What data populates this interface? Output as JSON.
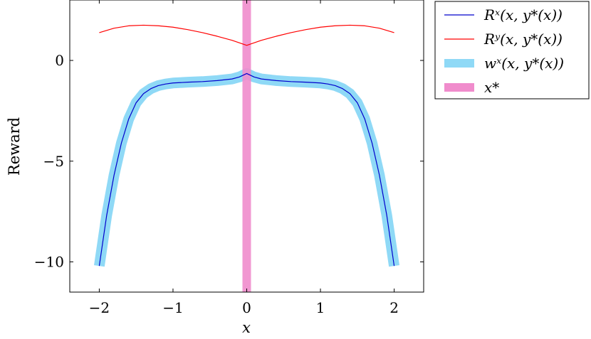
{
  "chart_data": {
    "type": "line",
    "xlabel": "x",
    "ylabel": "Reward",
    "xlim": [
      -2.4,
      2.4
    ],
    "ylim": [
      -11.5,
      3.0
    ],
    "xticks": [
      -2,
      -1,
      0,
      1,
      2
    ],
    "xtick_labels": [
      "−2",
      "−1",
      "0",
      "1",
      "2"
    ],
    "yticks": [
      0,
      -5,
      -10
    ],
    "ytick_labels": [
      "0",
      "−5",
      "−10"
    ],
    "grid": false,
    "legend_position": "outside-top-right",
    "series": [
      {
        "name": "R^x(x, y*(x))",
        "legend_label": "Rˣ(x, y*(x))",
        "color": "#0000cc",
        "style": "thin-line",
        "x": [
          -2.0,
          -1.9,
          -1.8,
          -1.7,
          -1.6,
          -1.5,
          -1.4,
          -1.3,
          -1.2,
          -1.1,
          -1.0,
          -0.8,
          -0.6,
          -0.4,
          -0.2,
          -0.1,
          0.0,
          0.1,
          0.2,
          0.4,
          0.6,
          0.8,
          1.0,
          1.1,
          1.2,
          1.3,
          1.4,
          1.5,
          1.6,
          1.7,
          1.8,
          1.9,
          2.0
        ],
        "y": [
          -10.2,
          -7.7,
          -5.7,
          -4.1,
          -2.9,
          -2.1,
          -1.65,
          -1.4,
          -1.25,
          -1.17,
          -1.12,
          -1.08,
          -1.05,
          -1.0,
          -0.92,
          -0.82,
          -0.65,
          -0.82,
          -0.92,
          -1.0,
          -1.05,
          -1.08,
          -1.12,
          -1.17,
          -1.25,
          -1.4,
          -1.65,
          -2.1,
          -2.9,
          -4.1,
          -5.7,
          -7.7,
          -10.2
        ]
      },
      {
        "name": "R^y(x, y*(x))",
        "legend_label": "Rʸ(x, y*(x))",
        "color": "#ff0000",
        "style": "thin-line",
        "x": [
          -2.0,
          -1.8,
          -1.6,
          -1.4,
          -1.2,
          -1.0,
          -0.8,
          -0.6,
          -0.4,
          -0.2,
          0.0,
          0.2,
          0.4,
          0.6,
          0.8,
          1.0,
          1.2,
          1.4,
          1.6,
          1.8,
          2.0
        ],
        "y": [
          1.38,
          1.6,
          1.72,
          1.75,
          1.72,
          1.65,
          1.53,
          1.38,
          1.2,
          1.0,
          0.75,
          1.0,
          1.2,
          1.38,
          1.53,
          1.65,
          1.72,
          1.75,
          1.72,
          1.6,
          1.38
        ]
      },
      {
        "name": "w^x(x, y*(x))",
        "legend_label": "wˣ(x, y*(x))",
        "color": "#8fd9f6",
        "style": "thick-band",
        "x": [
          -2.0,
          -1.9,
          -1.8,
          -1.7,
          -1.6,
          -1.5,
          -1.4,
          -1.3,
          -1.2,
          -1.1,
          -1.0,
          -0.8,
          -0.6,
          -0.4,
          -0.2,
          -0.1,
          0.0,
          0.1,
          0.2,
          0.4,
          0.6,
          0.8,
          1.0,
          1.1,
          1.2,
          1.3,
          1.4,
          1.5,
          1.6,
          1.7,
          1.8,
          1.9,
          2.0
        ],
        "y": [
          -10.2,
          -7.7,
          -5.7,
          -4.1,
          -2.9,
          -2.1,
          -1.65,
          -1.4,
          -1.25,
          -1.17,
          -1.12,
          -1.08,
          -1.05,
          -1.0,
          -0.92,
          -0.82,
          -0.65,
          -0.82,
          -0.92,
          -1.0,
          -1.05,
          -1.08,
          -1.12,
          -1.17,
          -1.25,
          -1.4,
          -1.65,
          -2.1,
          -2.9,
          -4.1,
          -5.7,
          -7.7,
          -10.2
        ]
      },
      {
        "name": "x*",
        "legend_label": "x*",
        "color": "#f08ccc",
        "style": "vertical-band",
        "x_value": 0.0
      }
    ]
  }
}
